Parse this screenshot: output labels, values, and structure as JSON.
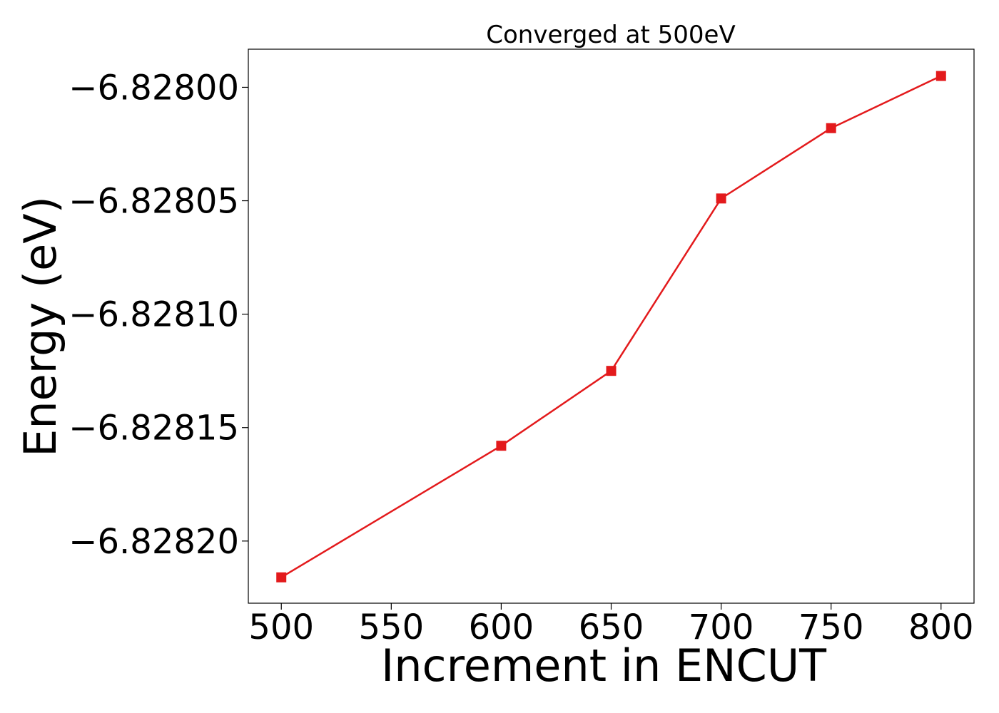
{
  "chart_data": {
    "type": "line",
    "title": "Converged at 500eV",
    "xlabel": "Increment in ENCUT",
    "ylabel": "Energy (eV)",
    "x": [
      500,
      600,
      650,
      700,
      750,
      800
    ],
    "series": [
      {
        "values": [
          -6.828216,
          -6.828158,
          -6.828125,
          -6.828049,
          -6.828018,
          -6.827995
        ],
        "color": "#e31a1c",
        "marker": "square"
      }
    ],
    "xticks": [
      500,
      550,
      600,
      650,
      700,
      750,
      800
    ],
    "xtick_labels": [
      "500",
      "550",
      "600",
      "650",
      "700",
      "750",
      "800"
    ],
    "yticks": [
      -6.8282,
      -6.82815,
      -6.8281,
      -6.82805,
      -6.828
    ],
    "ytick_labels": [
      "−6.82820",
      "−6.82815",
      "−6.82810",
      "−6.82805",
      "−6.82800"
    ],
    "xlim": [
      485,
      815
    ],
    "ylim": [
      -6.8282274,
      -6.8279832
    ],
    "grid": false,
    "legend": "none"
  }
}
